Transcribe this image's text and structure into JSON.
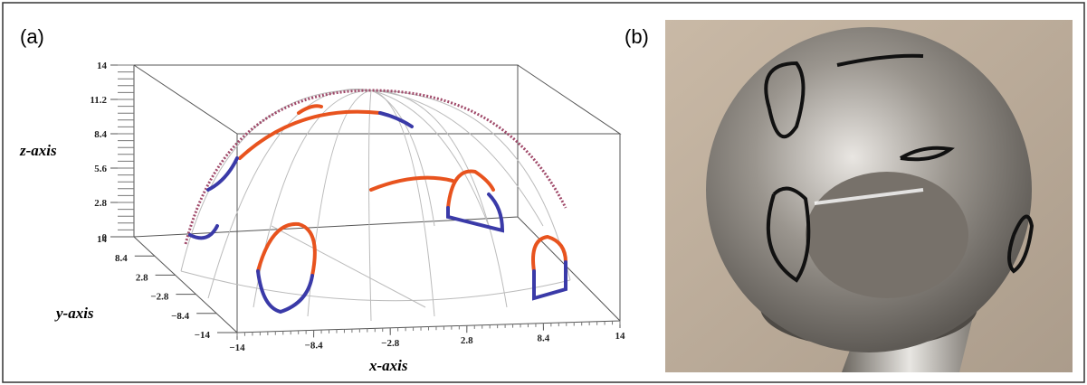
{
  "panels": [
    {
      "label": "(a)",
      "z_axis": {
        "title": "z-axis",
        "ticks": [
          "14",
          "11.2",
          "8.4",
          "5.6",
          "2.8",
          "0"
        ]
      },
      "y_axis": {
        "title": "y-axis",
        "ticks": [
          "14",
          "8.4",
          "2.8",
          "−2.8",
          "−8.4",
          "−14"
        ]
      },
      "x_axis": {
        "title": "x-axis",
        "ticks": [
          "−14",
          "−8.4",
          "−2.8",
          "2.8",
          "8.4",
          "14"
        ]
      }
    },
    {
      "label": "(b)"
    }
  ]
}
